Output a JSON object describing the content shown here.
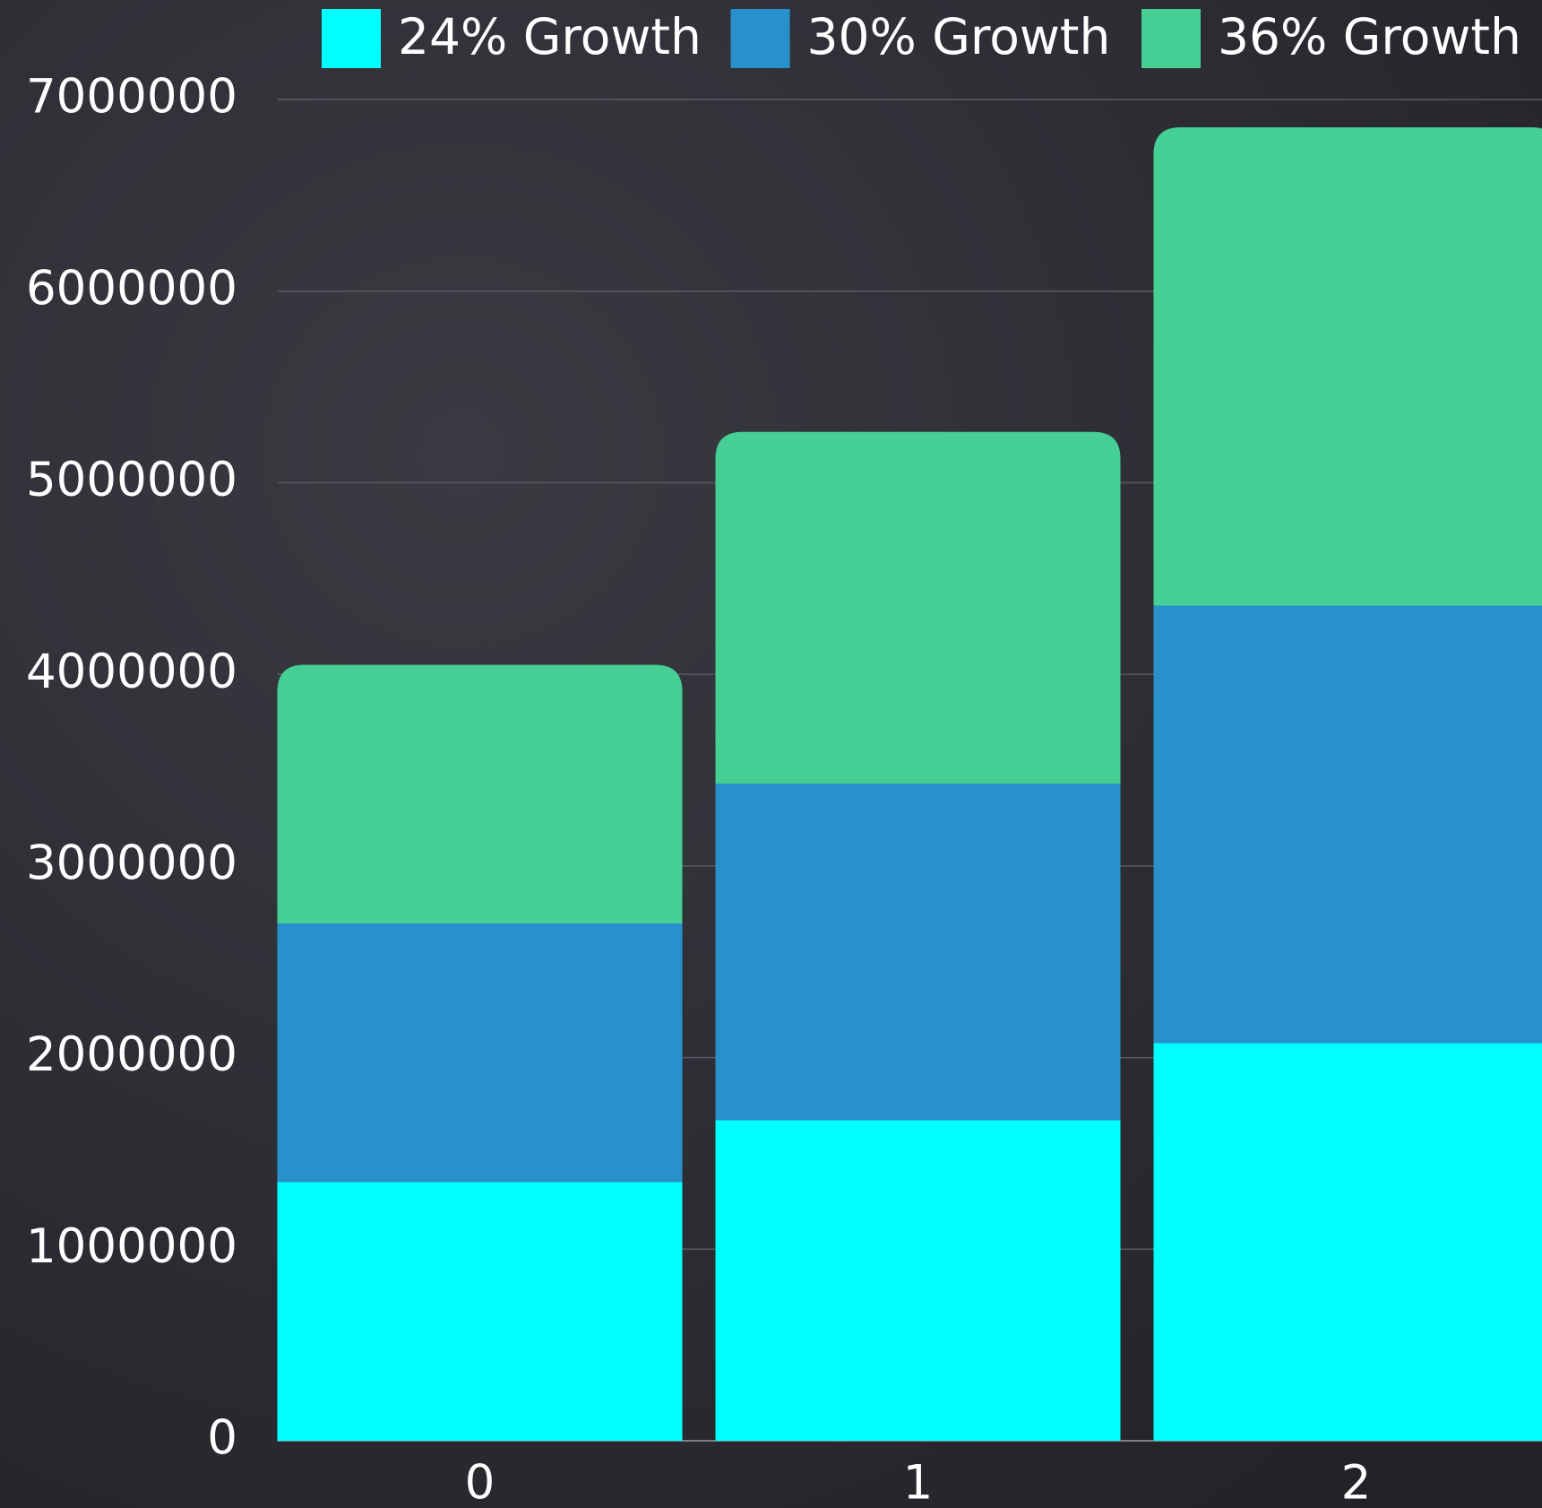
{
  "chart_data": {
    "type": "stacked-bar",
    "categories": [
      "0",
      "1",
      "2"
    ],
    "series": [
      {
        "name": "24% Growth",
        "color": "#00ffff",
        "values": [
          1350000,
          1674000,
          2076000
        ]
      },
      {
        "name": "30% Growth",
        "color": "#2891cc",
        "values": [
          1350000,
          1755000,
          2282000
        ]
      },
      {
        "name": "36% Growth",
        "color": "#46cf94",
        "values": [
          1350000,
          1836000,
          2497000
        ]
      }
    ],
    "ylim": [
      0,
      7000000
    ],
    "yticks": [
      0,
      1000000,
      2000000,
      3000000,
      4000000,
      5000000,
      6000000,
      7000000
    ],
    "grid": true
  }
}
